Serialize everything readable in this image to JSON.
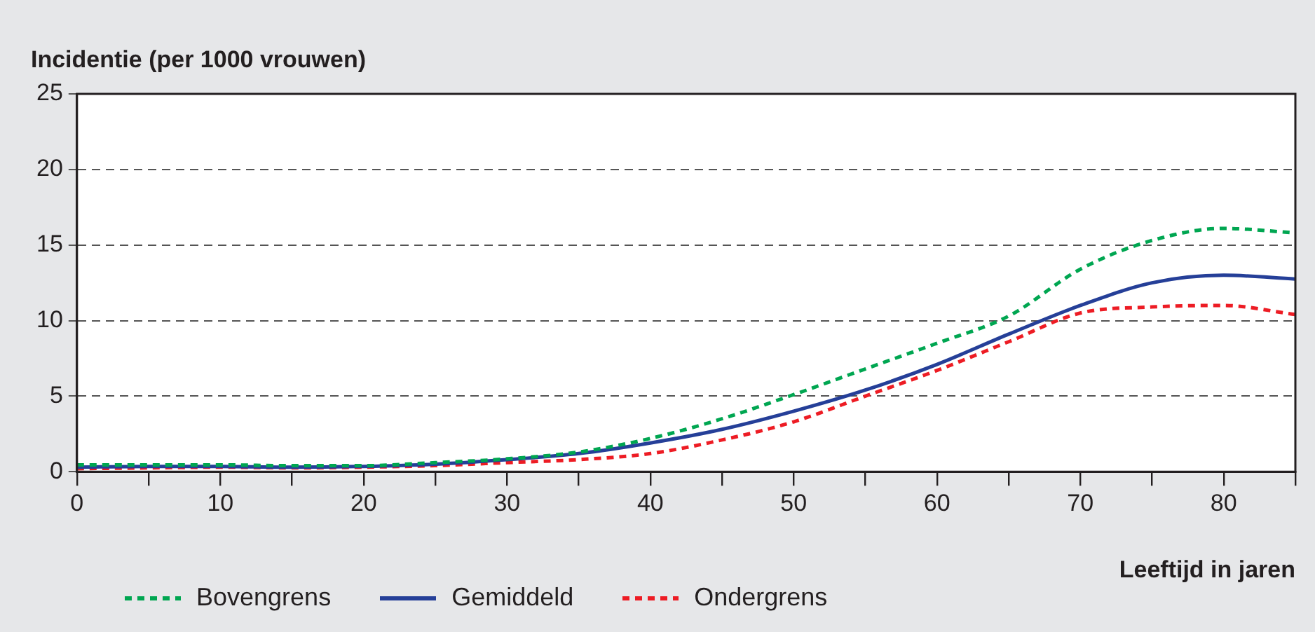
{
  "chart_data": {
    "type": "line",
    "ylabel": "Incidentie (per 1000 vrouwen)",
    "xlabel": "Leeftijd in jaren",
    "x": [
      0,
      5,
      10,
      15,
      20,
      25,
      30,
      35,
      40,
      45,
      50,
      55,
      60,
      65,
      70,
      75,
      80,
      85
    ],
    "series": [
      {
        "name": "Bovengrens",
        "color": "#00a651",
        "line_style": "dashed",
        "values": [
          0.45,
          0.45,
          0.45,
          0.4,
          0.4,
          0.6,
          0.85,
          1.3,
          2.2,
          3.5,
          5.1,
          6.8,
          8.5,
          10.3,
          13.4,
          15.3,
          16.1,
          15.8
        ]
      },
      {
        "name": "Gemiddeld",
        "color": "#253f98",
        "line_style": "solid",
        "values": [
          0.3,
          0.35,
          0.35,
          0.3,
          0.35,
          0.5,
          0.8,
          1.2,
          1.9,
          2.8,
          4.0,
          5.4,
          7.1,
          9.1,
          11.0,
          12.5,
          13.0,
          12.75
        ]
      },
      {
        "name": "Ondergrens",
        "color": "#ed1c24",
        "line_style": "dashed",
        "values": [
          0.2,
          0.25,
          0.3,
          0.25,
          0.3,
          0.4,
          0.6,
          0.8,
          1.2,
          2.1,
          3.3,
          5.0,
          6.7,
          8.6,
          10.5,
          10.9,
          11.0,
          10.4
        ]
      }
    ],
    "xlim": [
      0,
      85
    ],
    "xticks": [
      0,
      {
        "value": 5,
        "label": null
      },
      10,
      {
        "value": 15,
        "label": null
      },
      20,
      {
        "value": 25,
        "label": null
      },
      30,
      {
        "value": 35,
        "label": null
      },
      40,
      {
        "value": 45,
        "label": null
      },
      50,
      {
        "value": 55,
        "label": null
      },
      60,
      {
        "value": 65,
        "label": null
      },
      70,
      {
        "value": 75,
        "label": null
      },
      80,
      {
        "value": 85,
        "label": null
      }
    ],
    "ylim": [
      0,
      25
    ],
    "yticks": [
      0,
      5,
      10,
      15,
      20,
      25
    ],
    "grid": "y",
    "legend": "bottom",
    "marker": "none"
  }
}
